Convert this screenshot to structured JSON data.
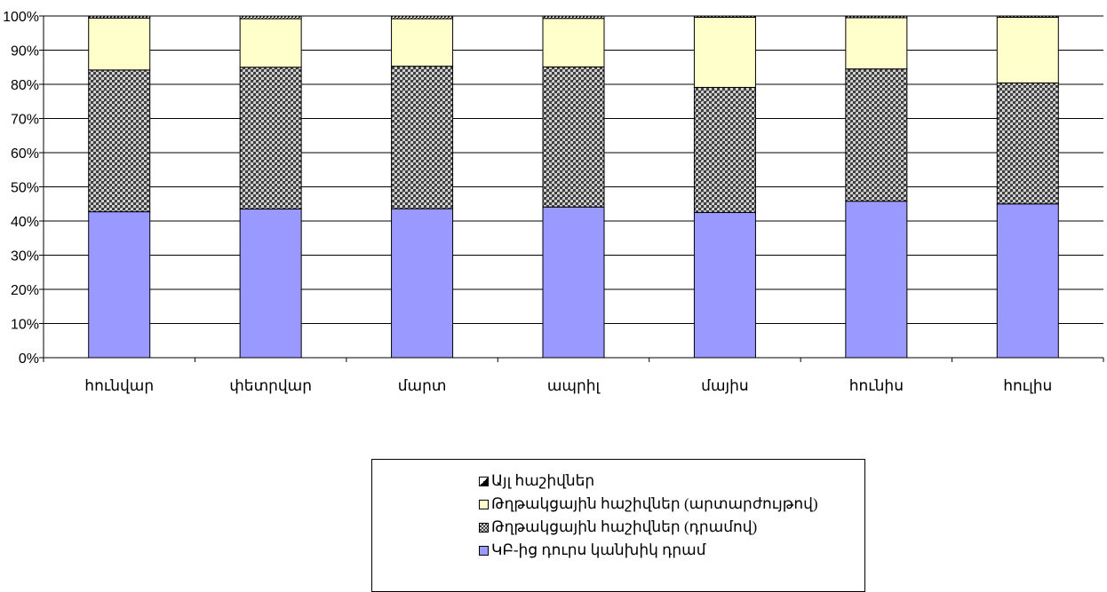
{
  "chart_data": {
    "type": "bar",
    "stacked": true,
    "percent": true,
    "categories": [
      "հունվար",
      "փետրվար",
      "մարտ",
      "ապրիլ",
      "մայիս",
      "հունիս",
      "հուլիս"
    ],
    "series": [
      {
        "name": "ԿԲ-ից դուրս կանխիկ դրամ",
        "color": "#9999ff",
        "pattern": "solid",
        "values": [
          42.7,
          43.5,
          43.6,
          44.1,
          42.5,
          45.8,
          45.0
        ]
      },
      {
        "name": "Թղթակցային հաշիվներ (դրամով)",
        "color": "#808080",
        "pattern": "checker",
        "values": [
          41.5,
          41.5,
          41.7,
          41.0,
          36.6,
          38.7,
          35.4
        ]
      },
      {
        "name": "Թղթակցային հաշիվներ (արտարժույթով)",
        "color": "#ffffcc",
        "pattern": "solid",
        "values": [
          15.2,
          14.2,
          13.9,
          14.2,
          20.5,
          15.0,
          19.2
        ]
      },
      {
        "name": "Այլ հաշիվներ",
        "color": "#000000",
        "pattern": "diagonal",
        "values": [
          0.6,
          0.8,
          0.8,
          0.7,
          0.4,
          0.5,
          0.4
        ]
      }
    ],
    "y_ticks": [
      "0%",
      "10%",
      "20%",
      "30%",
      "40%",
      "50%",
      "60%",
      "70%",
      "80%",
      "90%",
      "100%"
    ],
    "ylim": [
      0,
      100
    ],
    "grid": true,
    "legend_position": "bottom-center",
    "legend_order": [
      3,
      2,
      1,
      0
    ]
  }
}
